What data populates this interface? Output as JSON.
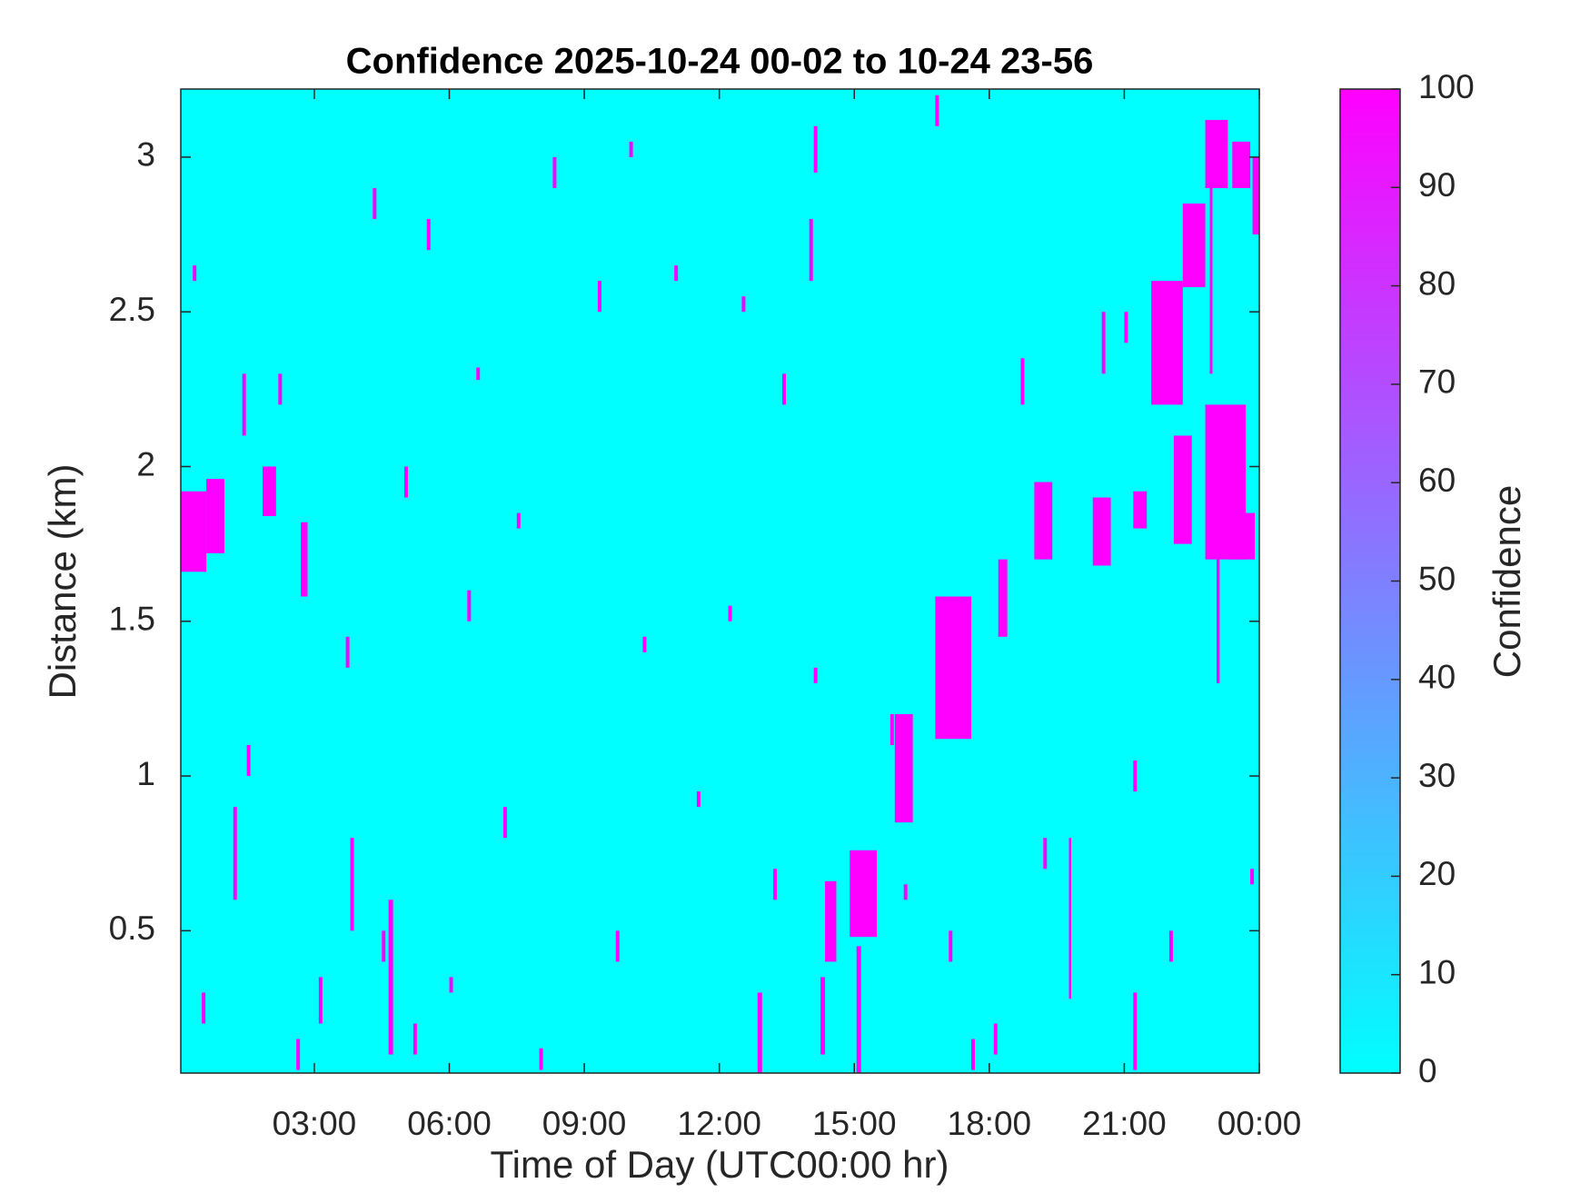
{
  "chart_data": {
    "type": "heatmap",
    "title": "Confidence 2025-10-24 00-02 to 10-24 23-56",
    "x_label": "Time of Day (UTC00:00 hr)",
    "y_label": "Distance (km)",
    "colorbar_label": "Confidence",
    "colormap": [
      "#00ffff",
      "#ff00ff"
    ],
    "clim": [
      0,
      100
    ],
    "cticks": [
      0,
      10,
      20,
      30,
      40,
      50,
      60,
      70,
      80,
      90,
      100
    ],
    "background_value": 0,
    "xlim": [
      0.033,
      24
    ],
    "xticks": [
      {
        "value": 3,
        "label": "03:00"
      },
      {
        "value": 6,
        "label": "06:00"
      },
      {
        "value": 9,
        "label": "09:00"
      },
      {
        "value": 12,
        "label": "12:00"
      },
      {
        "value": 15,
        "label": "15:00"
      },
      {
        "value": 18,
        "label": "18:00"
      },
      {
        "value": 21,
        "label": "21:00"
      },
      {
        "value": 24,
        "label": "00:00"
      }
    ],
    "ylim": [
      0.04,
      3.22
    ],
    "yticks": [
      0.5,
      1,
      1.5,
      2,
      2.5,
      3
    ],
    "cells": {
      "x0": [
        0.03,
        0.6,
        1.85,
        2.7,
        14.35,
        14.9,
        15.9,
        16.8,
        18.2,
        19.0,
        20.3,
        21.2,
        21.6,
        22.3,
        22.1,
        22.8,
        23.3,
        22.8,
        23.4,
        23.85,
        19.77,
        23.05,
        22.9,
        4.65,
        12.85,
        14.25,
        15.05,
        0.5,
        1.2,
        1.4,
        2.2,
        2.6,
        3.1,
        3.8,
        4.5,
        5.2,
        5.5,
        6.4,
        6.6,
        7.2,
        8.0,
        8.3,
        9.3,
        9.7,
        10.3,
        11.0,
        11.5,
        12.5,
        13.2,
        13.4,
        14.1,
        14.1,
        14.0,
        15.8,
        16.1,
        16.8,
        17.1,
        17.6,
        18.1,
        18.7,
        19.2,
        20.5,
        21.0,
        21.2,
        21.2,
        22.0,
        23.8,
        0.3,
        1.5,
        3.7,
        4.3,
        5.0,
        6.0,
        7.5,
        10.0,
        12.2
      ],
      "x1": [
        0.6,
        1.0,
        2.15,
        2.85,
        14.6,
        15.5,
        16.3,
        17.6,
        18.4,
        19.4,
        20.7,
        21.5,
        22.3,
        22.8,
        22.5,
        23.7,
        23.9,
        23.3,
        23.8,
        24.0,
        19.82,
        23.12,
        22.96,
        4.75,
        12.95,
        14.35,
        15.15,
        0.58,
        1.28,
        1.48,
        2.28,
        2.68,
        3.18,
        3.88,
        4.58,
        5.28,
        5.58,
        6.48,
        6.68,
        7.28,
        8.08,
        8.38,
        9.38,
        9.78,
        10.38,
        11.08,
        11.58,
        12.58,
        13.28,
        13.48,
        14.18,
        14.18,
        14.08,
        15.88,
        16.18,
        16.88,
        17.18,
        17.68,
        18.18,
        18.78,
        19.28,
        20.58,
        21.08,
        21.28,
        21.28,
        22.08,
        23.88,
        0.38,
        1.58,
        3.78,
        4.38,
        5.08,
        6.08,
        7.58,
        10.08,
        12.28
      ],
      "y0": [
        1.66,
        1.72,
        1.84,
        1.58,
        0.4,
        0.48,
        0.85,
        1.12,
        1.45,
        1.7,
        1.68,
        1.8,
        2.2,
        2.58,
        1.75,
        1.7,
        1.7,
        2.9,
        2.9,
        2.75,
        0.28,
        1.3,
        2.3,
        0.1,
        0.04,
        0.1,
        0.04,
        0.2,
        0.6,
        2.1,
        2.2,
        0.05,
        0.2,
        0.5,
        0.4,
        0.1,
        2.7,
        1.5,
        2.28,
        0.8,
        0.05,
        2.9,
        2.5,
        0.4,
        1.4,
        2.6,
        0.9,
        2.5,
        0.6,
        2.2,
        1.3,
        2.95,
        2.6,
        1.1,
        0.6,
        3.1,
        0.4,
        0.05,
        0.1,
        2.2,
        0.7,
        2.3,
        2.4,
        0.95,
        0.05,
        0.4,
        0.65,
        2.6,
        1.0,
        1.35,
        2.8,
        1.9,
        0.3,
        1.8,
        3.0,
        1.5
      ],
      "y1": [
        1.92,
        1.96,
        2.0,
        1.82,
        0.66,
        0.76,
        1.2,
        1.58,
        1.7,
        1.95,
        1.9,
        1.92,
        2.6,
        2.85,
        2.1,
        2.2,
        1.85,
        3.12,
        3.05,
        3.0,
        0.8,
        2.1,
        3.1,
        0.6,
        0.3,
        0.35,
        0.45,
        0.3,
        0.9,
        2.3,
        2.3,
        0.15,
        0.35,
        0.8,
        0.5,
        0.2,
        2.8,
        1.6,
        2.32,
        0.9,
        0.12,
        3.0,
        2.6,
        0.5,
        1.45,
        2.65,
        0.95,
        2.55,
        0.7,
        2.3,
        1.35,
        3.1,
        2.8,
        1.2,
        0.65,
        3.2,
        0.5,
        0.15,
        0.2,
        2.35,
        0.8,
        2.5,
        2.5,
        1.05,
        0.3,
        0.5,
        0.7,
        2.65,
        1.1,
        1.45,
        2.9,
        2.0,
        0.35,
        1.85,
        3.05,
        1.55
      ],
      "values": [
        100,
        100,
        100,
        100,
        100,
        100,
        100,
        100,
        100,
        100,
        100,
        100,
        100,
        100,
        100,
        100,
        100,
        100,
        100,
        100,
        100,
        100,
        100,
        100,
        100,
        100,
        100,
        100,
        100,
        100,
        100,
        100,
        100,
        100,
        100,
        100,
        100,
        100,
        100,
        100,
        100,
        100,
        100,
        100,
        100,
        100,
        100,
        100,
        100,
        100,
        100,
        100,
        100,
        100,
        100,
        100,
        100,
        100,
        100,
        100,
        100,
        100,
        100,
        100,
        100,
        100,
        100,
        100,
        100,
        100,
        100,
        100,
        100,
        100,
        100,
        100
      ]
    }
  }
}
